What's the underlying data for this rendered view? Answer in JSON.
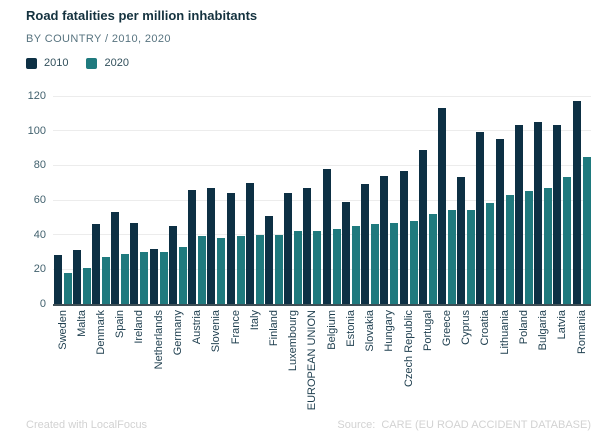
{
  "header": {
    "title": "Road fatalities per million inhabitants",
    "subtitle": "BY COUNTRY / 2010, 2020"
  },
  "footer": {
    "credit": "Created with LocalFocus",
    "source_label": "Source:",
    "source_text": "CARE (EU ROAD ACCIDENT DATABASE)"
  },
  "colors": {
    "series_2010": "#0d3044",
    "series_2020": "#1f7a7e",
    "title_text": "#14323f",
    "subtitle_text": "#587480",
    "gridline": "#ececec",
    "axis_line": "#3e4e55",
    "axis_label": "#1e3e4e",
    "footer_text": "#d2d2d2",
    "background": "#ffffff"
  },
  "chart_data": {
    "type": "bar",
    "title": "Road fatalities per million inhabitants",
    "subtitle": "BY COUNTRY / 2010, 2020",
    "xlabel": "",
    "ylabel": "",
    "ylim": [
      0,
      120
    ],
    "yticks": [
      0,
      20,
      40,
      60,
      80,
      100,
      120
    ],
    "grid": true,
    "legend_position": "top-left",
    "categories": [
      "Sweden",
      "Malta",
      "Denmark",
      "Spain",
      "Ireland",
      "Netherlands",
      "Germany",
      "Austria",
      "Slovenia",
      "France",
      "Italy",
      "Finland",
      "Luxembourg",
      "EUROPEAN UNION",
      "Belgium",
      "Estonia",
      "Slovakia",
      "Hungary",
      "Czech Republic",
      "Portugal",
      "Greece",
      "Cyprus",
      "Croatia",
      "Lithuania",
      "Poland",
      "Bulgaria",
      "Latvia",
      "Romania"
    ],
    "series": [
      {
        "name": "2010",
        "color": "#0d3044",
        "values": [
          28,
          31,
          46,
          53,
          47,
          32,
          45,
          66,
          67,
          64,
          70,
          51,
          64,
          67,
          78,
          59,
          69,
          74,
          77,
          89,
          113,
          73,
          99,
          95,
          103,
          105,
          103,
          117
        ]
      },
      {
        "name": "2020",
        "color": "#1f7a7e",
        "values": [
          18,
          21,
          27,
          29,
          30,
          30,
          33,
          39,
          38,
          39,
          40,
          40,
          42,
          42,
          43,
          45,
          46,
          47,
          48,
          52,
          54,
          54,
          58,
          63,
          65,
          67,
          73,
          85
        ]
      }
    ]
  }
}
